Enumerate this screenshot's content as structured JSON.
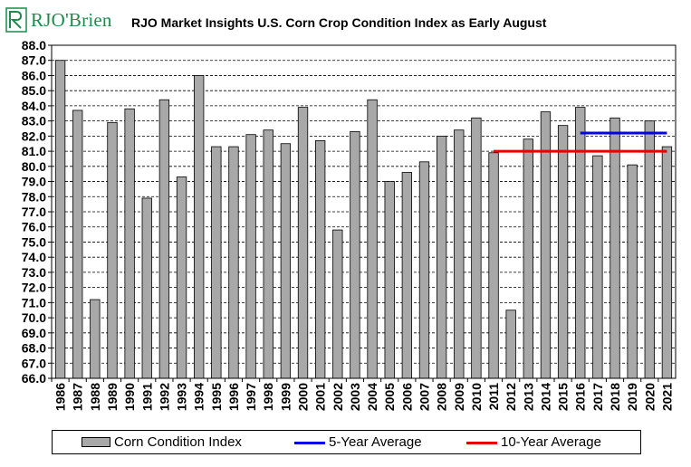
{
  "header": {
    "brand": "RJO'Brien",
    "title": "RJO Market Insights U.S. Corn Crop Condition Index as Early August"
  },
  "chart_data": {
    "type": "bar",
    "title": "RJO Market Insights U.S. Corn Crop Condition Index as Early August",
    "categories": [
      "1986",
      "1987",
      "1988",
      "1989",
      "1990",
      "1991",
      "1992",
      "1993",
      "1994",
      "1995",
      "1996",
      "1997",
      "1998",
      "1999",
      "2000",
      "2001",
      "2002",
      "2003",
      "2004",
      "2005",
      "2006",
      "2007",
      "2008",
      "2009",
      "2010",
      "2011",
      "2012",
      "2013",
      "2014",
      "2015",
      "2016",
      "2017",
      "2018",
      "2019",
      "2020",
      "2021"
    ],
    "series": [
      {
        "name": "Corn Condition Index",
        "color": "#a8a8a8",
        "values": [
          87.0,
          83.7,
          71.2,
          82.9,
          83.8,
          77.9,
          84.4,
          79.3,
          86.0,
          81.3,
          81.3,
          82.1,
          82.4,
          81.5,
          83.9,
          81.7,
          75.8,
          82.3,
          84.4,
          79.0,
          79.6,
          80.3,
          82.0,
          82.4,
          83.2,
          80.9,
          70.5,
          81.8,
          83.6,
          82.7,
          83.9,
          80.7,
          83.2,
          80.1,
          83.0,
          81.3
        ]
      }
    ],
    "lines": [
      {
        "name": "5-Year Average",
        "color": "#0000e6",
        "value": 82.2,
        "from": "2016",
        "to": "2021"
      },
      {
        "name": "10-Year Average",
        "color": "#e60000",
        "value": 81.0,
        "from": "2011",
        "to": "2021"
      }
    ],
    "ylim": [
      66.0,
      88.0
    ],
    "ytick_step": 1.0,
    "ytick_labels": [
      "66.0",
      "67.0",
      "68.0",
      "69.0",
      "70.0",
      "71.0",
      "72.0",
      "73.0",
      "74.0",
      "75.0",
      "76.0",
      "77.0",
      "78.0",
      "79.0",
      "80.0",
      "81.0",
      "82.0",
      "83.0",
      "84.0",
      "85.0",
      "86.0",
      "87.0",
      "88.0"
    ],
    "grid": true,
    "legend_position": "bottom"
  }
}
